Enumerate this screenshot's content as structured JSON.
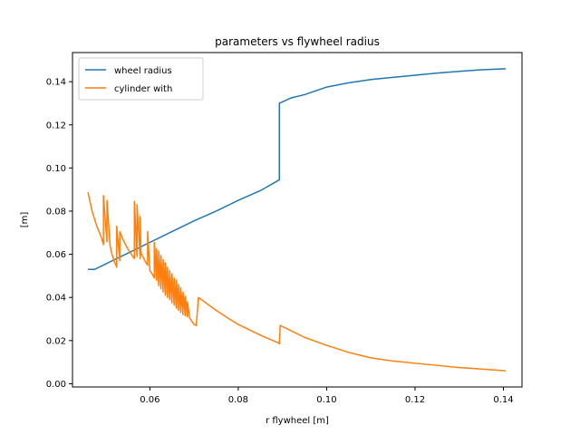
{
  "chart_data": {
    "type": "line",
    "title": "parameters vs flywheel radius",
    "xlabel": "r flywheel [m]",
    "ylabel": "[m]",
    "xlim": [
      0.0425,
      0.1442
    ],
    "ylim": [
      -0.0015,
      0.1535
    ],
    "xticks": [
      0.06,
      0.08,
      0.1,
      0.12,
      0.14
    ],
    "xtick_labels": [
      "0.06",
      "0.08",
      "0.10",
      "0.12",
      "0.14"
    ],
    "yticks": [
      0.0,
      0.02,
      0.04,
      0.06,
      0.08,
      0.1,
      0.12,
      0.14
    ],
    "ytick_labels": [
      "0.00",
      "0.02",
      "0.04",
      "0.06",
      "0.08",
      "0.10",
      "0.12",
      "0.14"
    ],
    "grid": false,
    "legend": "top-left",
    "series": [
      {
        "name": "wheel radius",
        "color": "#1f77b4",
        "points": [
          [
            0.046,
            0.053
          ],
          [
            0.0475,
            0.053
          ],
          [
            0.05,
            0.0555
          ],
          [
            0.055,
            0.0605
          ],
          [
            0.06,
            0.0655
          ],
          [
            0.065,
            0.0705
          ],
          [
            0.07,
            0.0755
          ],
          [
            0.075,
            0.08
          ],
          [
            0.08,
            0.085
          ],
          [
            0.085,
            0.0895
          ],
          [
            0.0893,
            0.0945
          ],
          [
            0.0893,
            0.13
          ],
          [
            0.092,
            0.1325
          ],
          [
            0.095,
            0.134
          ],
          [
            0.1,
            0.1375
          ],
          [
            0.105,
            0.1395
          ],
          [
            0.11,
            0.141
          ],
          [
            0.115,
            0.142
          ],
          [
            0.12,
            0.143
          ],
          [
            0.125,
            0.144
          ],
          [
            0.13,
            0.1448
          ],
          [
            0.135,
            0.1455
          ],
          [
            0.1405,
            0.146
          ]
        ]
      },
      {
        "name": "cylinder with",
        "color": "#ff7f0e",
        "points": [
          [
            0.046,
            0.0888
          ],
          [
            0.047,
            0.0795
          ],
          [
            0.048,
            0.073
          ],
          [
            0.049,
            0.068
          ],
          [
            0.0495,
            0.0645
          ],
          [
            0.0495,
            0.0872
          ],
          [
            0.0503,
            0.0658
          ],
          [
            0.0503,
            0.085
          ],
          [
            0.051,
            0.064
          ],
          [
            0.0515,
            0.0595
          ],
          [
            0.052,
            0.0565
          ],
          [
            0.0525,
            0.054
          ],
          [
            0.0525,
            0.073
          ],
          [
            0.0532,
            0.057
          ],
          [
            0.0532,
            0.0705
          ],
          [
            0.054,
            0.0665
          ],
          [
            0.055,
            0.0625
          ],
          [
            0.056,
            0.0595
          ],
          [
            0.0565,
            0.058
          ],
          [
            0.0565,
            0.0845
          ],
          [
            0.0571,
            0.059
          ],
          [
            0.0571,
            0.083
          ],
          [
            0.0578,
            0.058
          ],
          [
            0.0578,
            0.0775
          ],
          [
            0.058,
            0.0605
          ],
          [
            0.059,
            0.0565
          ],
          [
            0.0595,
            0.055
          ],
          [
            0.0595,
            0.0705
          ],
          [
            0.06,
            0.0525
          ],
          [
            0.0605,
            0.051
          ],
          [
            0.061,
            0.049
          ],
          [
            0.061,
            0.0655
          ],
          [
            0.0615,
            0.048
          ],
          [
            0.0615,
            0.0625
          ],
          [
            0.062,
            0.0455
          ],
          [
            0.062,
            0.0615
          ],
          [
            0.0625,
            0.044
          ],
          [
            0.0625,
            0.0595
          ],
          [
            0.063,
            0.0425
          ],
          [
            0.063,
            0.0575
          ],
          [
            0.0635,
            0.041
          ],
          [
            0.0635,
            0.056
          ],
          [
            0.064,
            0.04
          ],
          [
            0.064,
            0.054
          ],
          [
            0.0645,
            0.039
          ],
          [
            0.0645,
            0.0525
          ],
          [
            0.065,
            0.0375
          ],
          [
            0.065,
            0.051
          ],
          [
            0.0655,
            0.0365
          ],
          [
            0.0655,
            0.049
          ],
          [
            0.066,
            0.035
          ],
          [
            0.066,
            0.048
          ],
          [
            0.0665,
            0.034
          ],
          [
            0.0665,
            0.046
          ],
          [
            0.067,
            0.033
          ],
          [
            0.067,
            0.0445
          ],
          [
            0.0675,
            0.032
          ],
          [
            0.0675,
            0.0425
          ],
          [
            0.068,
            0.0315
          ],
          [
            0.068,
            0.0405
          ],
          [
            0.0685,
            0.031
          ],
          [
            0.0685,
            0.038
          ],
          [
            0.069,
            0.0305
          ],
          [
            0.0695,
            0.029
          ],
          [
            0.07,
            0.0275
          ],
          [
            0.0705,
            0.027
          ],
          [
            0.071,
            0.04
          ],
          [
            0.073,
            0.037
          ],
          [
            0.075,
            0.034
          ],
          [
            0.078,
            0.03
          ],
          [
            0.08,
            0.0275
          ],
          [
            0.085,
            0.0225
          ],
          [
            0.089,
            0.019
          ],
          [
            0.0893,
            0.0185
          ],
          [
            0.0895,
            0.027
          ],
          [
            0.092,
            0.0245
          ],
          [
            0.095,
            0.0215
          ],
          [
            0.1,
            0.0178
          ],
          [
            0.105,
            0.0145
          ],
          [
            0.11,
            0.012
          ],
          [
            0.115,
            0.0105
          ],
          [
            0.12,
            0.0095
          ],
          [
            0.125,
            0.0085
          ],
          [
            0.13,
            0.0075
          ],
          [
            0.135,
            0.0068
          ],
          [
            0.1405,
            0.006
          ]
        ]
      }
    ]
  }
}
